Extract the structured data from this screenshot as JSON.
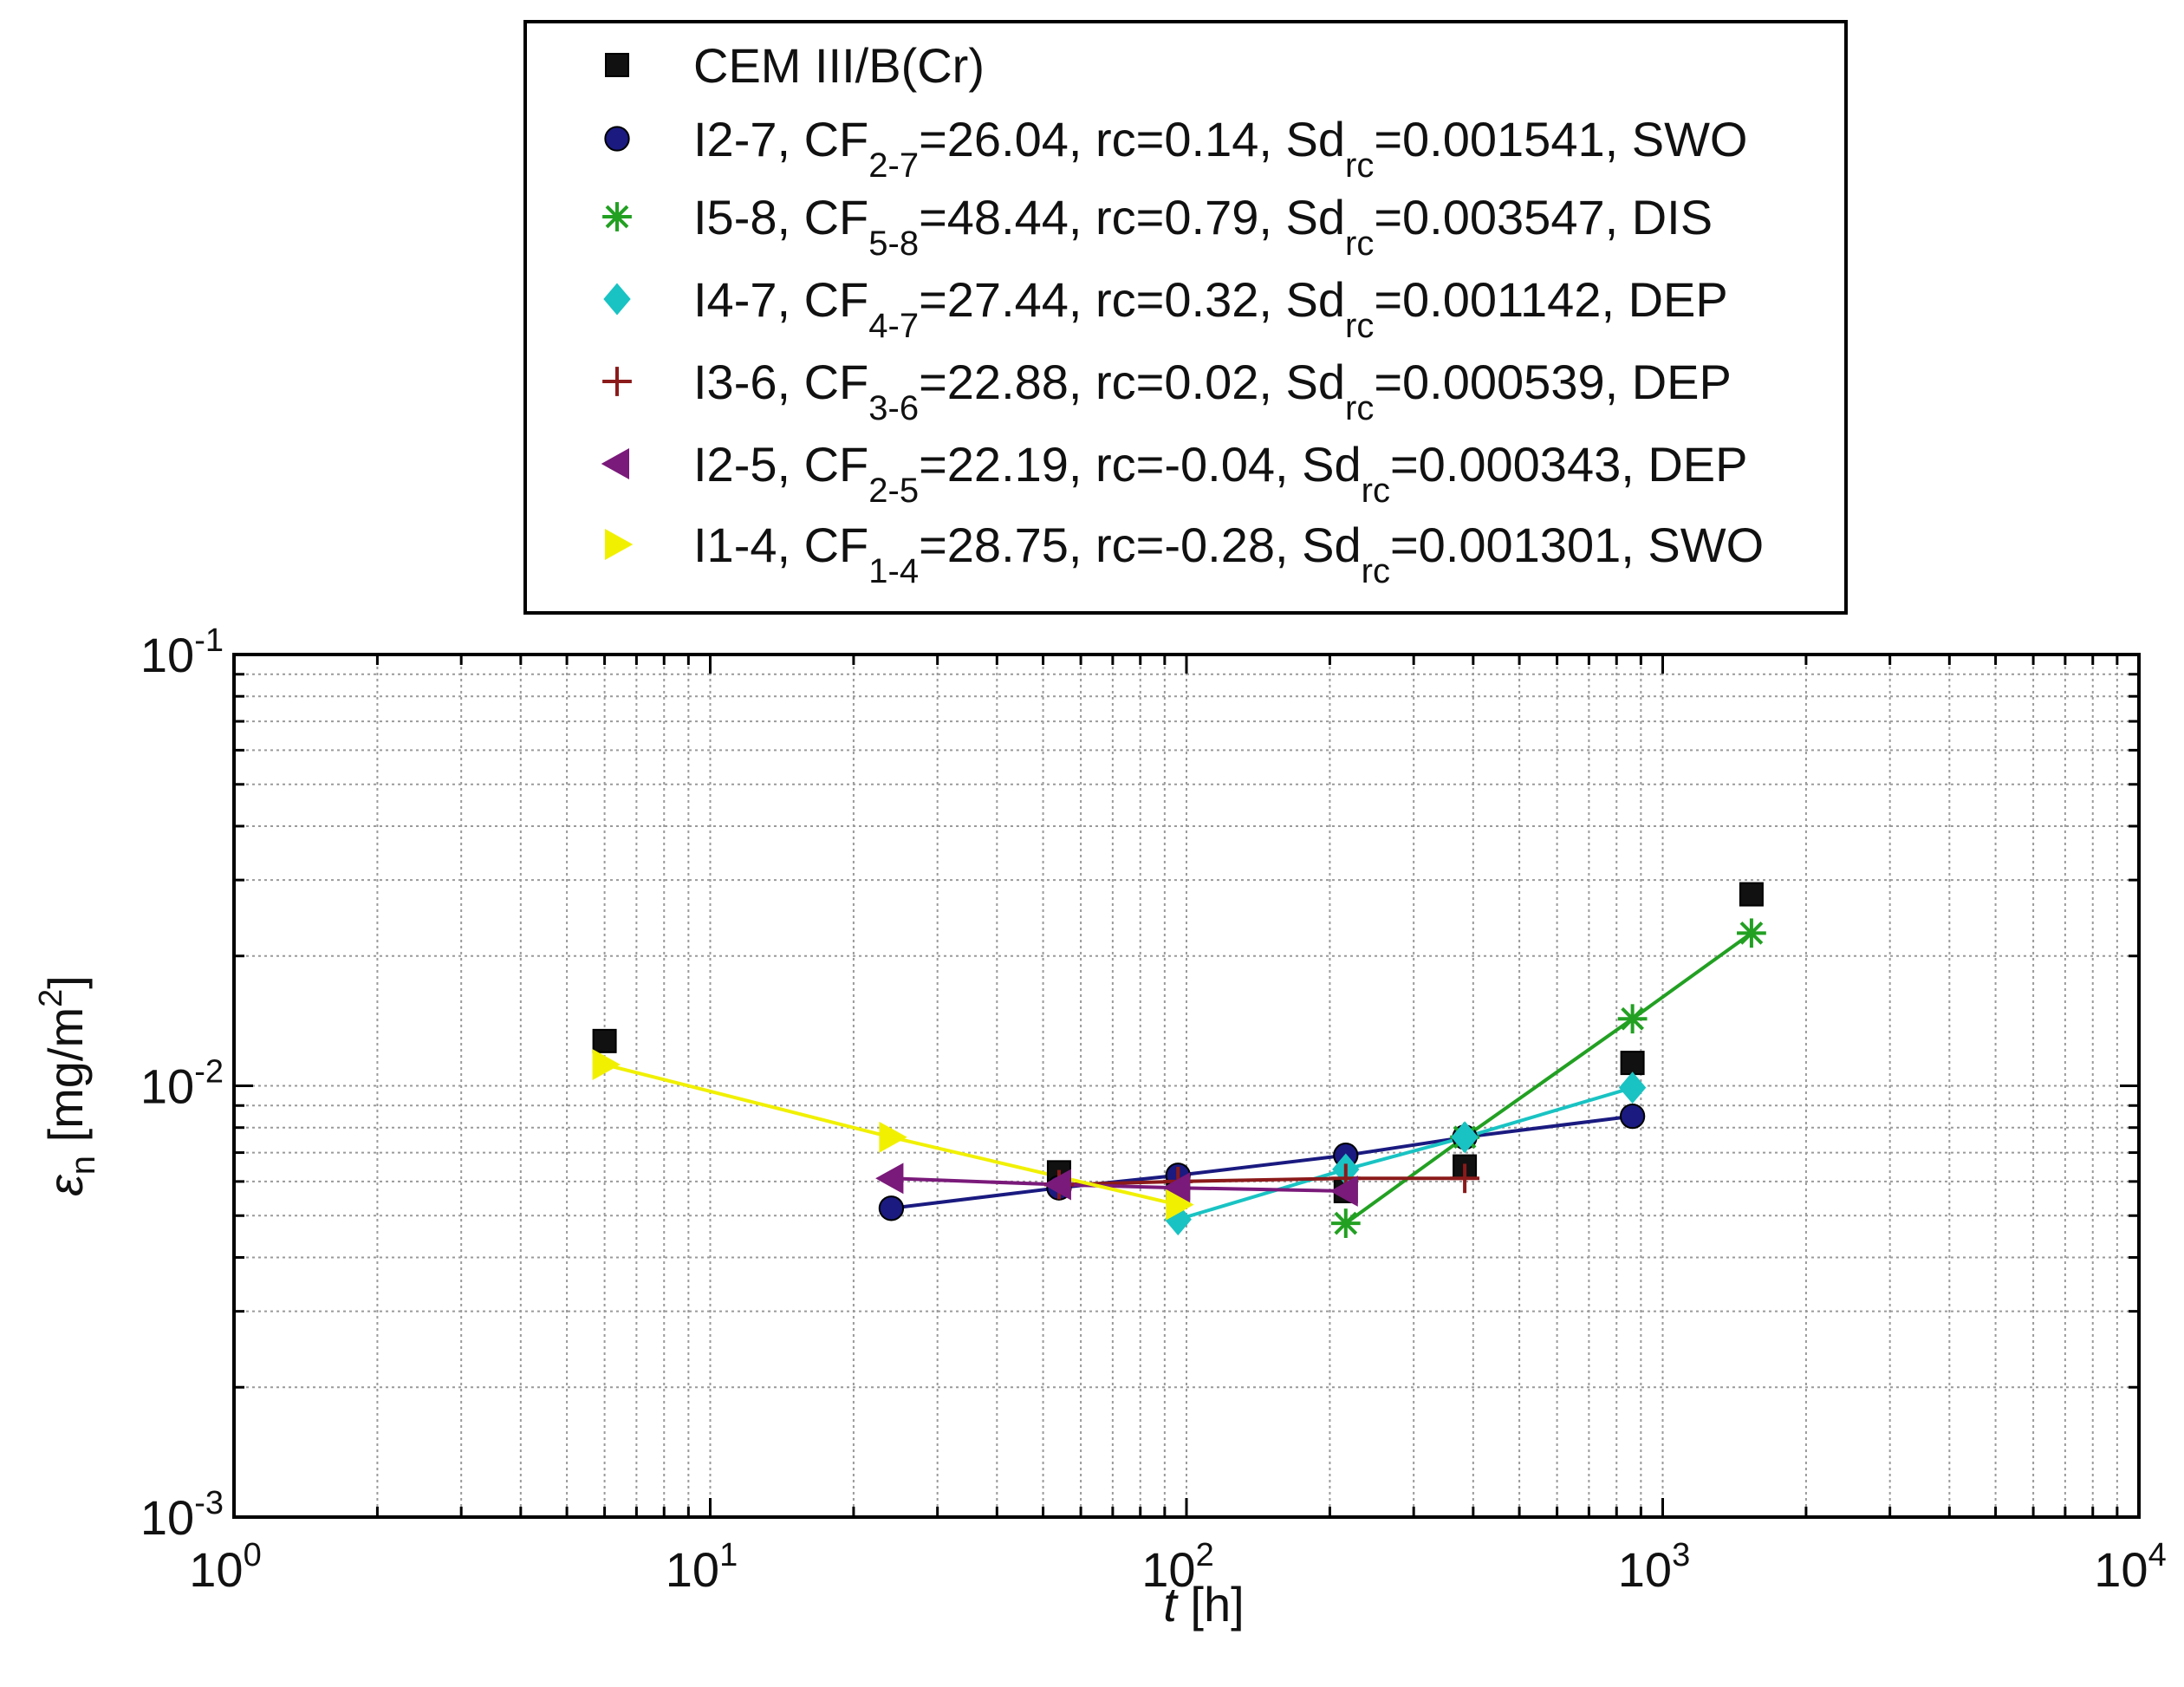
{
  "chart_data": {
    "type": "line",
    "xscale": "log",
    "yscale": "log",
    "xlim": [
      1,
      10000
    ],
    "ylim": [
      0.001,
      0.1
    ],
    "xlabel": {
      "italic": "t",
      "rest": " [h]"
    },
    "ylabel": {
      "symbol": "ε",
      "sub": "n",
      "rest": "  [mg/m",
      "sup": "2",
      "close": "]"
    },
    "grid": true,
    "legend_position": "top-center",
    "x_ticks": [
      {
        "base": "10",
        "exp": "0",
        "value": 1
      },
      {
        "base": "10",
        "exp": "1",
        "value": 10
      },
      {
        "base": "10",
        "exp": "2",
        "value": 100
      },
      {
        "base": "10",
        "exp": "3",
        "value": 1000
      },
      {
        "base": "10",
        "exp": "4",
        "value": 10000
      }
    ],
    "y_ticks": [
      {
        "base": "10",
        "exp": "-3",
        "value": 0.001
      },
      {
        "base": "10",
        "exp": "-2",
        "value": 0.01
      },
      {
        "base": "10",
        "exp": "-1",
        "value": 0.1
      }
    ],
    "series": [
      {
        "name": "CEM III/B(Cr)",
        "legend": [
          {
            "t": "CEM III/B(Cr)"
          }
        ],
        "marker": "square",
        "color": "#111111",
        "line": false,
        "x": [
          6,
          54,
          96,
          216,
          384,
          864,
          1536
        ],
        "y": [
          0.0127,
          0.0063,
          0.0058,
          0.0057,
          0.0065,
          0.0113,
          0.0278
        ]
      },
      {
        "name": "I2-7",
        "legend": [
          {
            "t": "I2-7, CF"
          },
          {
            "sub": "2-7"
          },
          {
            "t": "=26.04, rc=0.14, Sd"
          },
          {
            "sub": "rc"
          },
          {
            "t": "=0.001541, SWO"
          }
        ],
        "marker": "circle",
        "color": "#1a1a80",
        "line": true,
        "x": [
          24,
          54,
          96,
          216,
          384,
          864
        ],
        "y": [
          0.0052,
          0.0058,
          0.0062,
          0.0069,
          0.0076,
          0.0085
        ]
      },
      {
        "name": "I5-8",
        "legend": [
          {
            "t": "I5-8, CF"
          },
          {
            "sub": "5-8"
          },
          {
            "t": "=48.44, rc=0.79, Sd"
          },
          {
            "sub": "rc"
          },
          {
            "t": "=0.003547, DIS"
          }
        ],
        "marker": "asterisk",
        "color": "#22a022",
        "line": true,
        "x": [
          216,
          384,
          864,
          1536
        ],
        "y": [
          0.0048,
          0.0076,
          0.0143,
          0.0226
        ]
      },
      {
        "name": "I4-7",
        "legend": [
          {
            "t": "I4-7, CF"
          },
          {
            "sub": "4-7"
          },
          {
            "t": "=27.44, rc=0.32, Sd"
          },
          {
            "sub": "rc"
          },
          {
            "t": "=0.001142, DEP"
          }
        ],
        "marker": "diamond",
        "color": "#19c3c3",
        "line": true,
        "x": [
          96,
          216,
          384,
          864
        ],
        "y": [
          0.0049,
          0.0064,
          0.0076,
          0.0099
        ]
      },
      {
        "name": "I3-6",
        "legend": [
          {
            "t": "I3-6, CF"
          },
          {
            "sub": "3-6"
          },
          {
            "t": "=22.88, rc=0.02, Sd"
          },
          {
            "sub": "rc"
          },
          {
            "t": "=0.000539, DEP"
          }
        ],
        "marker": "plus",
        "color": "#8b1a1a",
        "line": true,
        "x": [
          54,
          96,
          216,
          384
        ],
        "y": [
          0.0059,
          0.006,
          0.0061,
          0.0061
        ]
      },
      {
        "name": "I2-5",
        "legend": [
          {
            "t": "I2-5, CF"
          },
          {
            "sub": "2-5"
          },
          {
            "t": "=22.19, rc=-0.04, Sd"
          },
          {
            "sub": "rc"
          },
          {
            "t": "=0.000343, DEP"
          }
        ],
        "marker": "triangle-left",
        "color": "#7a1a7a",
        "line": true,
        "x": [
          24,
          54,
          96,
          216
        ],
        "y": [
          0.0061,
          0.0059,
          0.0058,
          0.0057
        ]
      },
      {
        "name": "I1-4",
        "legend": [
          {
            "t": "I1-4, CF"
          },
          {
            "sub": "1-4"
          },
          {
            "t": "=28.75, rc=-0.28, Sd"
          },
          {
            "sub": "rc"
          },
          {
            "t": "=0.001301, SWO"
          }
        ],
        "marker": "triangle-right",
        "color": "#f0f000",
        "line": true,
        "x": [
          6,
          24,
          96
        ],
        "y": [
          0.0112,
          0.0076,
          0.0053
        ]
      }
    ]
  }
}
